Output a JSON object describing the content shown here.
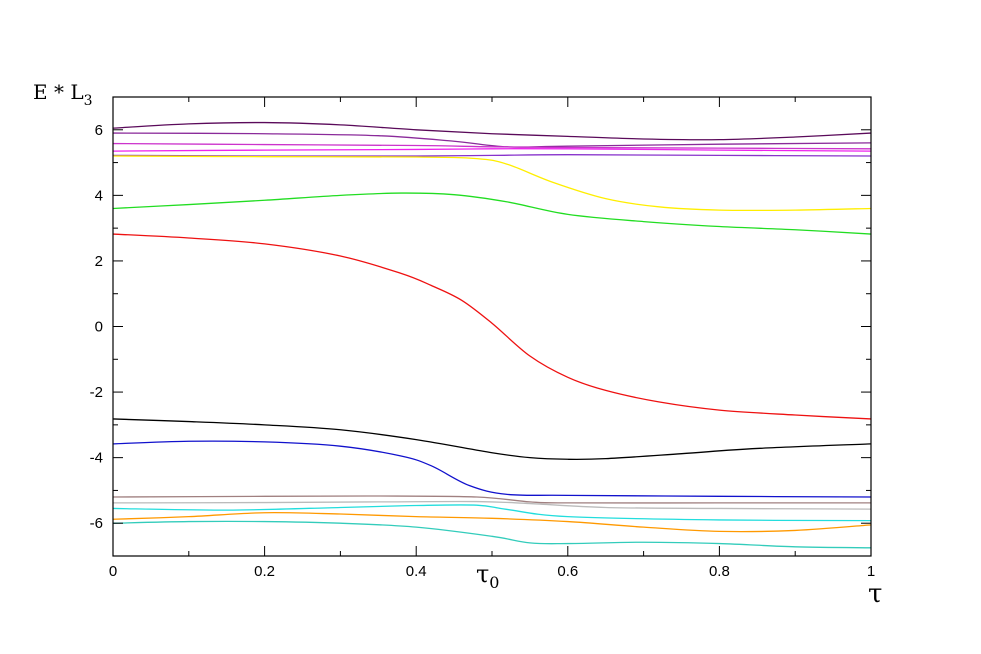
{
  "chart_data": {
    "type": "line",
    "title": "",
    "ylabel": {
      "main": "E * L",
      "sub": "3"
    },
    "xlabel": "τ",
    "xlim": [
      0,
      1
    ],
    "ylim": [
      -7,
      7
    ],
    "x_ticks": [
      0,
      0.2,
      0.4,
      0.6,
      0.8,
      1
    ],
    "x_tick_labels": [
      "0",
      "0.2",
      "0.4",
      "0.6",
      "0.8",
      "1"
    ],
    "y_ticks": [
      -6,
      -4,
      -2,
      0,
      2,
      4,
      6
    ],
    "y_tick_labels": [
      "-6",
      "-4",
      "-2",
      "0",
      "2",
      "4",
      "6"
    ],
    "annotations": [
      {
        "text": "τ",
        "sub": "0",
        "x": 0.5
      }
    ],
    "grid": false,
    "series": [
      {
        "color": "#5a0a5a",
        "points": [
          [
            0,
            6.05
          ],
          [
            0.1,
            6.18
          ],
          [
            0.2,
            6.22
          ],
          [
            0.3,
            6.15
          ],
          [
            0.4,
            6.0
          ],
          [
            0.5,
            5.88
          ],
          [
            0.6,
            5.8
          ],
          [
            0.7,
            5.72
          ],
          [
            0.8,
            5.7
          ],
          [
            0.9,
            5.78
          ],
          [
            1,
            5.9
          ]
        ]
      },
      {
        "color": "#8a2a9a",
        "points": [
          [
            0,
            5.9
          ],
          [
            0.2,
            5.88
          ],
          [
            0.35,
            5.82
          ],
          [
            0.45,
            5.65
          ],
          [
            0.52,
            5.48
          ],
          [
            0.6,
            5.5
          ],
          [
            0.8,
            5.56
          ],
          [
            1,
            5.6
          ]
        ]
      },
      {
        "color": "#cc33cc",
        "points": [
          [
            0,
            5.58
          ],
          [
            0.2,
            5.55
          ],
          [
            0.4,
            5.52
          ],
          [
            0.5,
            5.48
          ],
          [
            0.6,
            5.46
          ],
          [
            0.8,
            5.44
          ],
          [
            1,
            5.42
          ]
        ]
      },
      {
        "color": "#ee22ee",
        "points": [
          [
            0,
            5.35
          ],
          [
            0.2,
            5.38
          ],
          [
            0.4,
            5.4
          ],
          [
            0.5,
            5.42
          ],
          [
            0.6,
            5.42
          ],
          [
            0.8,
            5.38
          ],
          [
            1,
            5.35
          ]
        ]
      },
      {
        "color": "#8833cc",
        "points": [
          [
            0,
            5.22
          ],
          [
            0.2,
            5.2
          ],
          [
            0.4,
            5.2
          ],
          [
            0.5,
            5.22
          ],
          [
            0.6,
            5.24
          ],
          [
            0.8,
            5.22
          ],
          [
            1,
            5.2
          ]
        ]
      },
      {
        "color": "#ffee00",
        "points": [
          [
            0,
            5.2
          ],
          [
            0.2,
            5.18
          ],
          [
            0.4,
            5.17
          ],
          [
            0.48,
            5.12
          ],
          [
            0.52,
            4.95
          ],
          [
            0.58,
            4.4
          ],
          [
            0.65,
            3.9
          ],
          [
            0.72,
            3.65
          ],
          [
            0.8,
            3.55
          ],
          [
            0.9,
            3.55
          ],
          [
            1,
            3.6
          ]
        ]
      },
      {
        "color": "#22dd22",
        "points": [
          [
            0,
            3.6
          ],
          [
            0.1,
            3.72
          ],
          [
            0.2,
            3.85
          ],
          [
            0.3,
            4.0
          ],
          [
            0.38,
            4.07
          ],
          [
            0.45,
            4.02
          ],
          [
            0.52,
            3.8
          ],
          [
            0.6,
            3.42
          ],
          [
            0.7,
            3.2
          ],
          [
            0.8,
            3.05
          ],
          [
            0.9,
            2.95
          ],
          [
            1,
            2.82
          ]
        ]
      },
      {
        "color": "#ee1111",
        "points": [
          [
            0,
            2.82
          ],
          [
            0.1,
            2.7
          ],
          [
            0.2,
            2.52
          ],
          [
            0.3,
            2.15
          ],
          [
            0.38,
            1.62
          ],
          [
            0.42,
            1.25
          ],
          [
            0.46,
            0.8
          ],
          [
            0.5,
            0.1
          ],
          [
            0.55,
            -0.9
          ],
          [
            0.6,
            -1.55
          ],
          [
            0.65,
            -1.95
          ],
          [
            0.72,
            -2.3
          ],
          [
            0.8,
            -2.55
          ],
          [
            0.9,
            -2.7
          ],
          [
            1,
            -2.82
          ]
        ]
      },
      {
        "color": "#000000",
        "points": [
          [
            0,
            -2.82
          ],
          [
            0.1,
            -2.9
          ],
          [
            0.2,
            -3.0
          ],
          [
            0.3,
            -3.15
          ],
          [
            0.4,
            -3.45
          ],
          [
            0.5,
            -3.85
          ],
          [
            0.55,
            -4.0
          ],
          [
            0.6,
            -4.05
          ],
          [
            0.65,
            -4.03
          ],
          [
            0.75,
            -3.88
          ],
          [
            0.85,
            -3.72
          ],
          [
            1,
            -3.58
          ]
        ]
      },
      {
        "color": "#1111cc",
        "points": [
          [
            0,
            -3.58
          ],
          [
            0.1,
            -3.5
          ],
          [
            0.2,
            -3.52
          ],
          [
            0.3,
            -3.65
          ],
          [
            0.38,
            -3.95
          ],
          [
            0.42,
            -4.25
          ],
          [
            0.47,
            -4.85
          ],
          [
            0.52,
            -5.12
          ],
          [
            0.6,
            -5.15
          ],
          [
            0.8,
            -5.18
          ],
          [
            1,
            -5.2
          ]
        ]
      },
      {
        "color": "#a08080",
        "points": [
          [
            0,
            -5.2
          ],
          [
            0.2,
            -5.18
          ],
          [
            0.35,
            -5.17
          ],
          [
            0.48,
            -5.2
          ],
          [
            0.55,
            -5.35
          ],
          [
            0.6,
            -5.38
          ],
          [
            0.8,
            -5.38
          ],
          [
            1,
            -5.38
          ]
        ]
      },
      {
        "color": "#bbbbbb",
        "points": [
          [
            0,
            -5.38
          ],
          [
            0.2,
            -5.37
          ],
          [
            0.35,
            -5.35
          ],
          [
            0.48,
            -5.34
          ],
          [
            0.55,
            -5.4
          ],
          [
            0.65,
            -5.52
          ],
          [
            0.8,
            -5.55
          ],
          [
            1,
            -5.57
          ]
        ]
      },
      {
        "color": "#22dddd",
        "points": [
          [
            0,
            -5.55
          ],
          [
            0.15,
            -5.6
          ],
          [
            0.3,
            -5.52
          ],
          [
            0.4,
            -5.46
          ],
          [
            0.48,
            -5.45
          ],
          [
            0.52,
            -5.58
          ],
          [
            0.6,
            -5.8
          ],
          [
            0.8,
            -5.9
          ],
          [
            1,
            -5.92
          ]
        ]
      },
      {
        "color": "#ff9900",
        "points": [
          [
            0,
            -5.88
          ],
          [
            0.1,
            -5.8
          ],
          [
            0.2,
            -5.68
          ],
          [
            0.3,
            -5.72
          ],
          [
            0.4,
            -5.8
          ],
          [
            0.5,
            -5.85
          ],
          [
            0.6,
            -5.95
          ],
          [
            0.7,
            -6.12
          ],
          [
            0.8,
            -6.25
          ],
          [
            0.9,
            -6.22
          ],
          [
            1,
            -6.05
          ]
        ]
      },
      {
        "color": "#33ccbb",
        "points": [
          [
            0,
            -6.0
          ],
          [
            0.1,
            -5.95
          ],
          [
            0.2,
            -5.95
          ],
          [
            0.3,
            -6.0
          ],
          [
            0.4,
            -6.12
          ],
          [
            0.5,
            -6.4
          ],
          [
            0.55,
            -6.6
          ],
          [
            0.6,
            -6.62
          ],
          [
            0.7,
            -6.58
          ],
          [
            0.8,
            -6.62
          ],
          [
            0.9,
            -6.72
          ],
          [
            1,
            -6.75
          ]
        ]
      }
    ]
  }
}
